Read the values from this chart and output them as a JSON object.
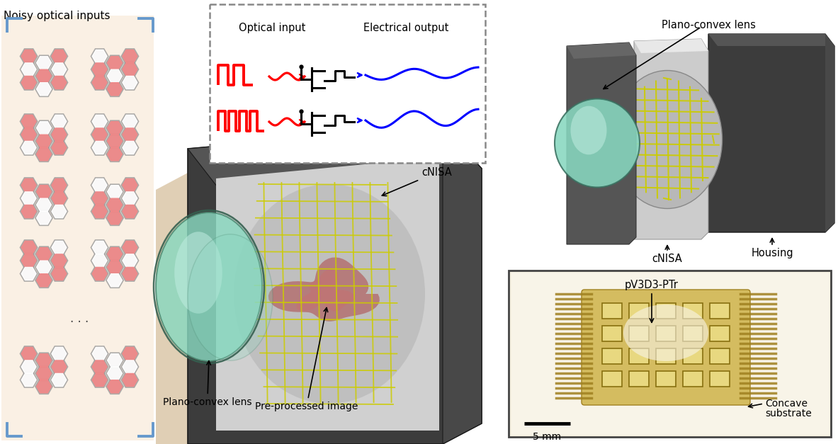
{
  "fig_width": 11.83,
  "fig_height": 6.27,
  "bg_color": "#ffffff",
  "left_panel_bg": "#faf0e4",
  "title_noisy": "Noisy optical inputs",
  "title_cnisa": "cNISA",
  "label_plano_lens": "Plano-convex lens",
  "label_cnisa_right": "cNISA",
  "label_housing": "Housing",
  "label_preprocessed": "Pre-processed image",
  "label_plano_lens_bottom": "Plano-convex lens",
  "label_pV3D3": "pV3D3-PTr",
  "label_concave": "Concave\nsubstrate",
  "label_5mm": "5 mm",
  "optical_input_label": "Optical input",
  "electrical_output_label": "Electrical output",
  "hex_fill": "#f08888",
  "hex_border": "#999999",
  "corner_color": "#6699cc",
  "lens_green": "#88d8c0",
  "lens_light": "#c0ece0",
  "dark_box": "#3c3c3c",
  "dark_box2": "#505050",
  "silver_inner": "#d0d0d0",
  "cnisa_gray": "#cccccc",
  "cnisa_light": "#e8e8e8",
  "yellow_elec": "#cccc00",
  "tan_beam": "#c8a878",
  "photo_bg": "#f5f0e0",
  "photo_border": "#444444",
  "photo_gold": "#c8b040",
  "photo_dark_gold": "#a08020"
}
